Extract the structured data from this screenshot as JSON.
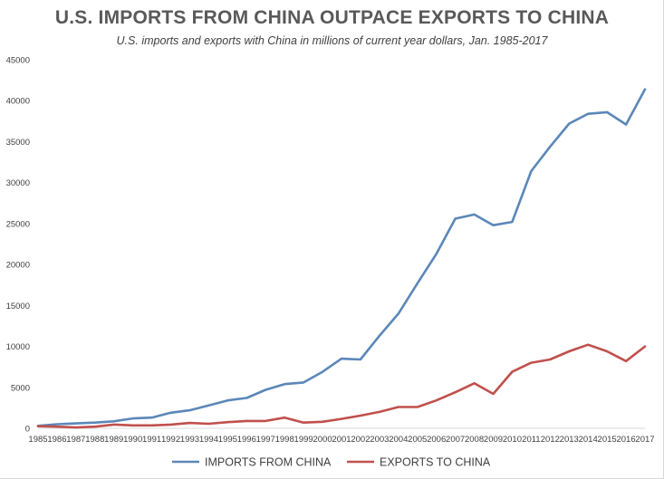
{
  "chart_data": {
    "type": "line",
    "title": "U.S. IMPORTS FROM CHINA OUTPACE EXPORTS TO CHINA",
    "subtitle": "U.S. imports and exports with China in millions of current year dollars, Jan. 1985-2017",
    "xlabel": "",
    "ylabel": "",
    "ylim": [
      0,
      45000
    ],
    "yticks": [
      "0",
      "5000",
      "10000",
      "15000",
      "20000",
      "25000",
      "30000",
      "35000",
      "40000",
      "45000"
    ],
    "x": [
      "1985",
      "1986",
      "1987",
      "1988",
      "1989",
      "1990",
      "1991",
      "1992",
      "1993",
      "1994",
      "1995",
      "1996",
      "1997",
      "1998",
      "1999",
      "2000",
      "2001",
      "2002",
      "2003",
      "2004",
      "2005",
      "2006",
      "2007",
      "2008",
      "2009",
      "2010",
      "2011",
      "2012",
      "2013",
      "2014",
      "2015",
      "2016",
      "2017"
    ],
    "grid": false,
    "legend_position": "bottom",
    "series": [
      {
        "name": "IMPORTS FROM CHINA",
        "color": "#5b87b8",
        "values": [
          300,
          500,
          600,
          700,
          850,
          1200,
          1300,
          1900,
          2200,
          2800,
          3400,
          3700,
          4700,
          5400,
          5600,
          6900,
          8500,
          8400,
          11300,
          14000,
          17700,
          21300,
          25600,
          26100,
          24800,
          25200,
          31400,
          34400,
          37200,
          38400,
          38600,
          37100,
          41400
        ]
      },
      {
        "name": "EXPORTS TO CHINA",
        "color": "#c0504d",
        "values": [
          250,
          200,
          100,
          200,
          450,
          350,
          350,
          450,
          650,
          550,
          750,
          900,
          900,
          1300,
          700,
          800,
          1150,
          1550,
          2000,
          2600,
          2600,
          3400,
          4400,
          5500,
          4200,
          6900,
          8000,
          8400,
          9400,
          10200,
          9400,
          8200,
          10000
        ]
      }
    ]
  }
}
